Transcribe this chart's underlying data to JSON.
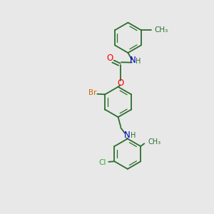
{
  "bg_color": "#e8e8e8",
  "bond_color": "#2d6e2d",
  "atom_colors": {
    "O": "#ff0000",
    "N": "#0000cc",
    "Br": "#cc6600",
    "Cl": "#33aa33",
    "C": "#2d6e2d",
    "H": "#2d6e2d"
  },
  "bond_lw": 1.3,
  "dbl_lw": 0.9,
  "ring_r": 0.72,
  "font_size": 7.5
}
